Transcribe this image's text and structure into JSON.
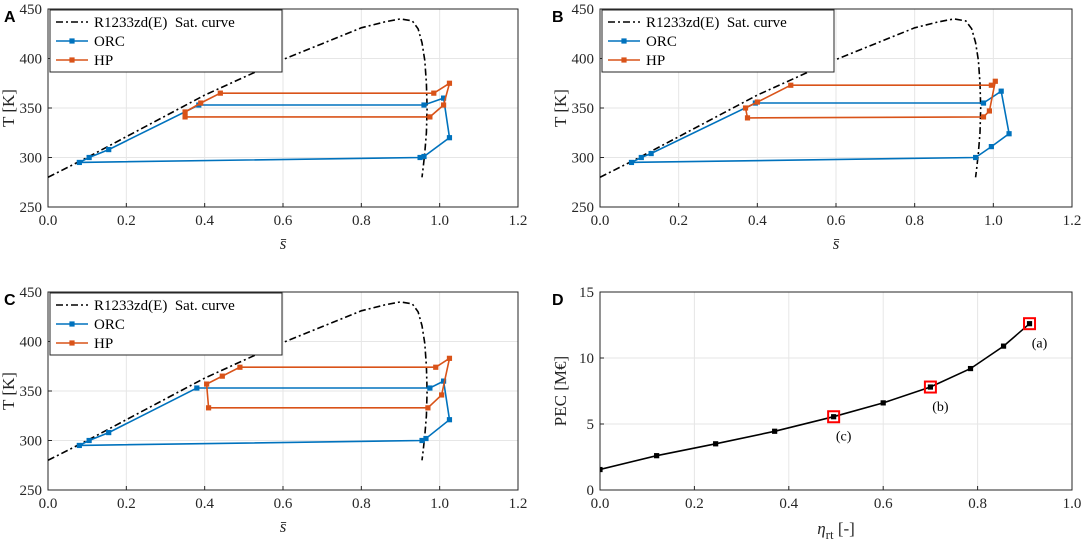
{
  "colors": {
    "orc": "#0072BD",
    "hp": "#D95319",
    "sat": "#000000",
    "pec": "#000000",
    "highlight": "#ff0000"
  },
  "chart_data": [
    {
      "panel": "A",
      "type": "line",
      "xlabel": "s̄",
      "ylabel": "T  [K]",
      "xlim": [
        0,
        1.2
      ],
      "ylim": [
        250,
        450
      ],
      "xticks": [
        "0.0",
        "0.2",
        "0.4",
        "0.6",
        "0.8",
        "1.0",
        "1.2"
      ],
      "yticks": [
        "250",
        "300",
        "350",
        "400",
        "450"
      ],
      "legend": [
        "R1233zd(E)  Sat. curve",
        "ORC",
        "HP"
      ],
      "series": [
        {
          "name": "R1233zd(E)  Sat. curve",
          "style": "dashdot",
          "x": [
            0.0,
            0.1,
            0.2,
            0.3,
            0.4,
            0.5,
            0.6,
            0.7,
            0.8,
            0.86,
            0.9,
            0.93,
            0.945,
            0.955,
            0.962,
            0.966,
            0.968,
            0.966,
            0.962,
            0.958,
            0.955
          ],
          "y": [
            280,
            300,
            321,
            342,
            363,
            381,
            399,
            415,
            431,
            437,
            440,
            438,
            430,
            416,
            398,
            375,
            350,
            325,
            305,
            290,
            280
          ]
        },
        {
          "name": "ORC",
          "style": "marker",
          "x": [
            0.08,
            0.105,
            0.155,
            0.385,
            0.96,
            1.01,
            1.025,
            0.96,
            0.95,
            0.08
          ],
          "y": [
            295,
            300,
            308,
            353,
            353,
            360,
            320,
            301,
            300,
            295
          ]
        },
        {
          "name": "HP",
          "style": "marker",
          "x": [
            0.35,
            0.35,
            0.39,
            0.44,
            0.985,
            1.025,
            1.01,
            0.975,
            0.35
          ],
          "y": [
            341,
            346,
            355,
            365,
            365,
            375,
            353,
            341,
            341
          ]
        }
      ]
    },
    {
      "panel": "B",
      "type": "line",
      "xlabel": "s̄",
      "ylabel": "T  [K]",
      "xlim": [
        0,
        1.2
      ],
      "ylim": [
        250,
        450
      ],
      "xticks": [
        "0.0",
        "0.2",
        "0.4",
        "0.6",
        "0.8",
        "1.0",
        "1.2"
      ],
      "yticks": [
        "250",
        "300",
        "350",
        "400",
        "450"
      ],
      "legend": [
        "R1233zd(E)  Sat. curve",
        "ORC",
        "HP"
      ],
      "series": [
        {
          "name": "R1233zd(E)  Sat. curve",
          "style": "dashdot",
          "x": [
            0.0,
            0.1,
            0.2,
            0.3,
            0.4,
            0.5,
            0.6,
            0.7,
            0.8,
            0.86,
            0.9,
            0.93,
            0.945,
            0.955,
            0.962,
            0.966,
            0.968,
            0.966,
            0.962,
            0.958,
            0.955
          ],
          "y": [
            280,
            300,
            321,
            342,
            363,
            381,
            399,
            415,
            431,
            437,
            440,
            438,
            430,
            416,
            398,
            375,
            350,
            325,
            305,
            290,
            280
          ]
        },
        {
          "name": "ORC",
          "style": "marker",
          "x": [
            0.08,
            0.105,
            0.13,
            0.395,
            0.975,
            1.02,
            1.04,
            0.995,
            0.955,
            0.08
          ],
          "y": [
            295,
            300,
            304,
            355,
            355,
            367,
            324,
            311,
            300,
            295
          ]
        },
        {
          "name": "HP",
          "style": "marker",
          "x": [
            0.375,
            0.37,
            0.4,
            0.485,
            0.995,
            1.005,
            0.99,
            0.975,
            0.375
          ],
          "y": [
            340,
            350,
            356,
            373,
            373,
            377,
            347,
            341,
            340
          ]
        }
      ]
    },
    {
      "panel": "C",
      "type": "line",
      "xlabel": "s̄",
      "ylabel": "T  [K]",
      "xlim": [
        0,
        1.2
      ],
      "ylim": [
        250,
        450
      ],
      "xticks": [
        "0.0",
        "0.2",
        "0.4",
        "0.6",
        "0.8",
        "1.0",
        "1.2"
      ],
      "yticks": [
        "250",
        "300",
        "350",
        "400",
        "450"
      ],
      "legend": [
        "R1233zd(E)  Sat. curve",
        "ORC",
        "HP"
      ],
      "series": [
        {
          "name": "R1233zd(E)  Sat. curve",
          "style": "dashdot",
          "x": [
            0.0,
            0.1,
            0.2,
            0.3,
            0.4,
            0.5,
            0.6,
            0.7,
            0.8,
            0.86,
            0.9,
            0.93,
            0.945,
            0.955,
            0.962,
            0.966,
            0.968,
            0.966,
            0.962,
            0.958,
            0.955
          ],
          "y": [
            280,
            300,
            321,
            342,
            363,
            381,
            399,
            415,
            431,
            437,
            440,
            438,
            430,
            416,
            398,
            375,
            350,
            325,
            305,
            290,
            280
          ]
        },
        {
          "name": "ORC",
          "style": "marker",
          "x": [
            0.08,
            0.105,
            0.155,
            0.38,
            0.975,
            1.01,
            1.025,
            0.965,
            0.955,
            0.08
          ],
          "y": [
            295,
            300,
            308,
            353,
            353,
            360,
            321,
            302,
            300,
            295
          ]
        },
        {
          "name": "HP",
          "style": "marker",
          "x": [
            0.41,
            0.405,
            0.445,
            0.49,
            0.99,
            1.025,
            1.005,
            0.97,
            0.41
          ],
          "y": [
            333,
            357,
            365,
            374,
            374,
            383,
            346,
            333,
            333
          ]
        }
      ]
    },
    {
      "panel": "D",
      "type": "line",
      "xlabel": "ηrt  [-]",
      "ylabel": "PEC  [M€]",
      "xlim": [
        0,
        1.0
      ],
      "ylim": [
        0,
        15
      ],
      "xticks": [
        "0.0",
        "0.2",
        "0.4",
        "0.6",
        "0.8",
        "1.0"
      ],
      "yticks": [
        "0",
        "5",
        "10",
        "15"
      ],
      "series": [
        {
          "name": "PEC",
          "x": [
            0.0,
            0.12,
            0.245,
            0.37,
            0.495,
            0.6,
            0.7,
            0.785,
            0.855,
            0.91
          ],
          "y": [
            1.55,
            2.6,
            3.5,
            4.45,
            5.55,
            6.6,
            7.8,
            9.2,
            10.9,
            12.6
          ]
        }
      ],
      "highlighted": [
        {
          "x": 0.91,
          "y": 12.6,
          "label": "(a)"
        },
        {
          "x": 0.7,
          "y": 7.8,
          "label": "(b)"
        },
        {
          "x": 0.495,
          "y": 5.55,
          "label": "(c)"
        }
      ]
    }
  ]
}
